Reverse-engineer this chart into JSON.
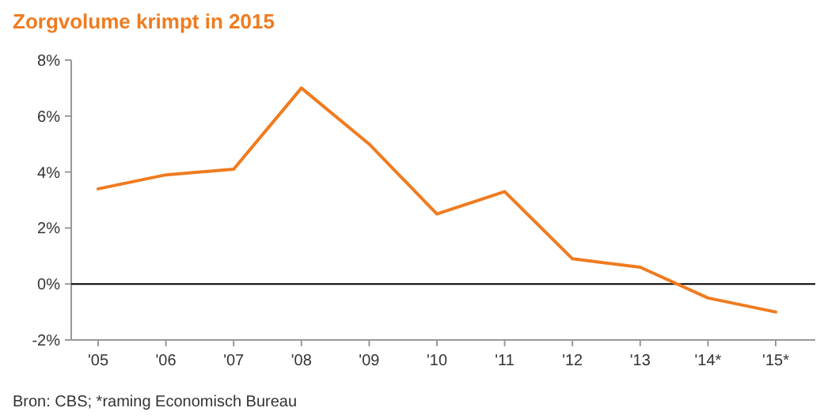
{
  "chart_data": {
    "type": "line",
    "title": "Zorgvolume krimpt in 2015",
    "categories": [
      "'05",
      "'06",
      "'07",
      "'08",
      "'09",
      "'10",
      "'11",
      "'12",
      "'13",
      "'14*",
      "'15*"
    ],
    "series": [
      {
        "color": "#f07b1f",
        "values": [
          3.4,
          3.9,
          4.1,
          7.0,
          5.0,
          2.5,
          3.3,
          0.9,
          0.6,
          -0.5,
          -1.0
        ]
      }
    ],
    "ylim": [
      -2,
      8
    ],
    "yticks": [
      {
        "value": -2,
        "label": "-2%"
      },
      {
        "value": 0,
        "label": "0%"
      },
      {
        "value": 2,
        "label": "2%"
      },
      {
        "value": 4,
        "label": "4%"
      },
      {
        "value": 6,
        "label": "6%"
      },
      {
        "value": 8,
        "label": "8%"
      }
    ],
    "ref_lines": [
      {
        "axis": "y",
        "value": 0,
        "color": "#000000"
      }
    ],
    "grid": false,
    "marker": "none",
    "line_style": "solid",
    "annotations": [
      "Bron: CBS; *raming Economisch Bureau"
    ]
  }
}
